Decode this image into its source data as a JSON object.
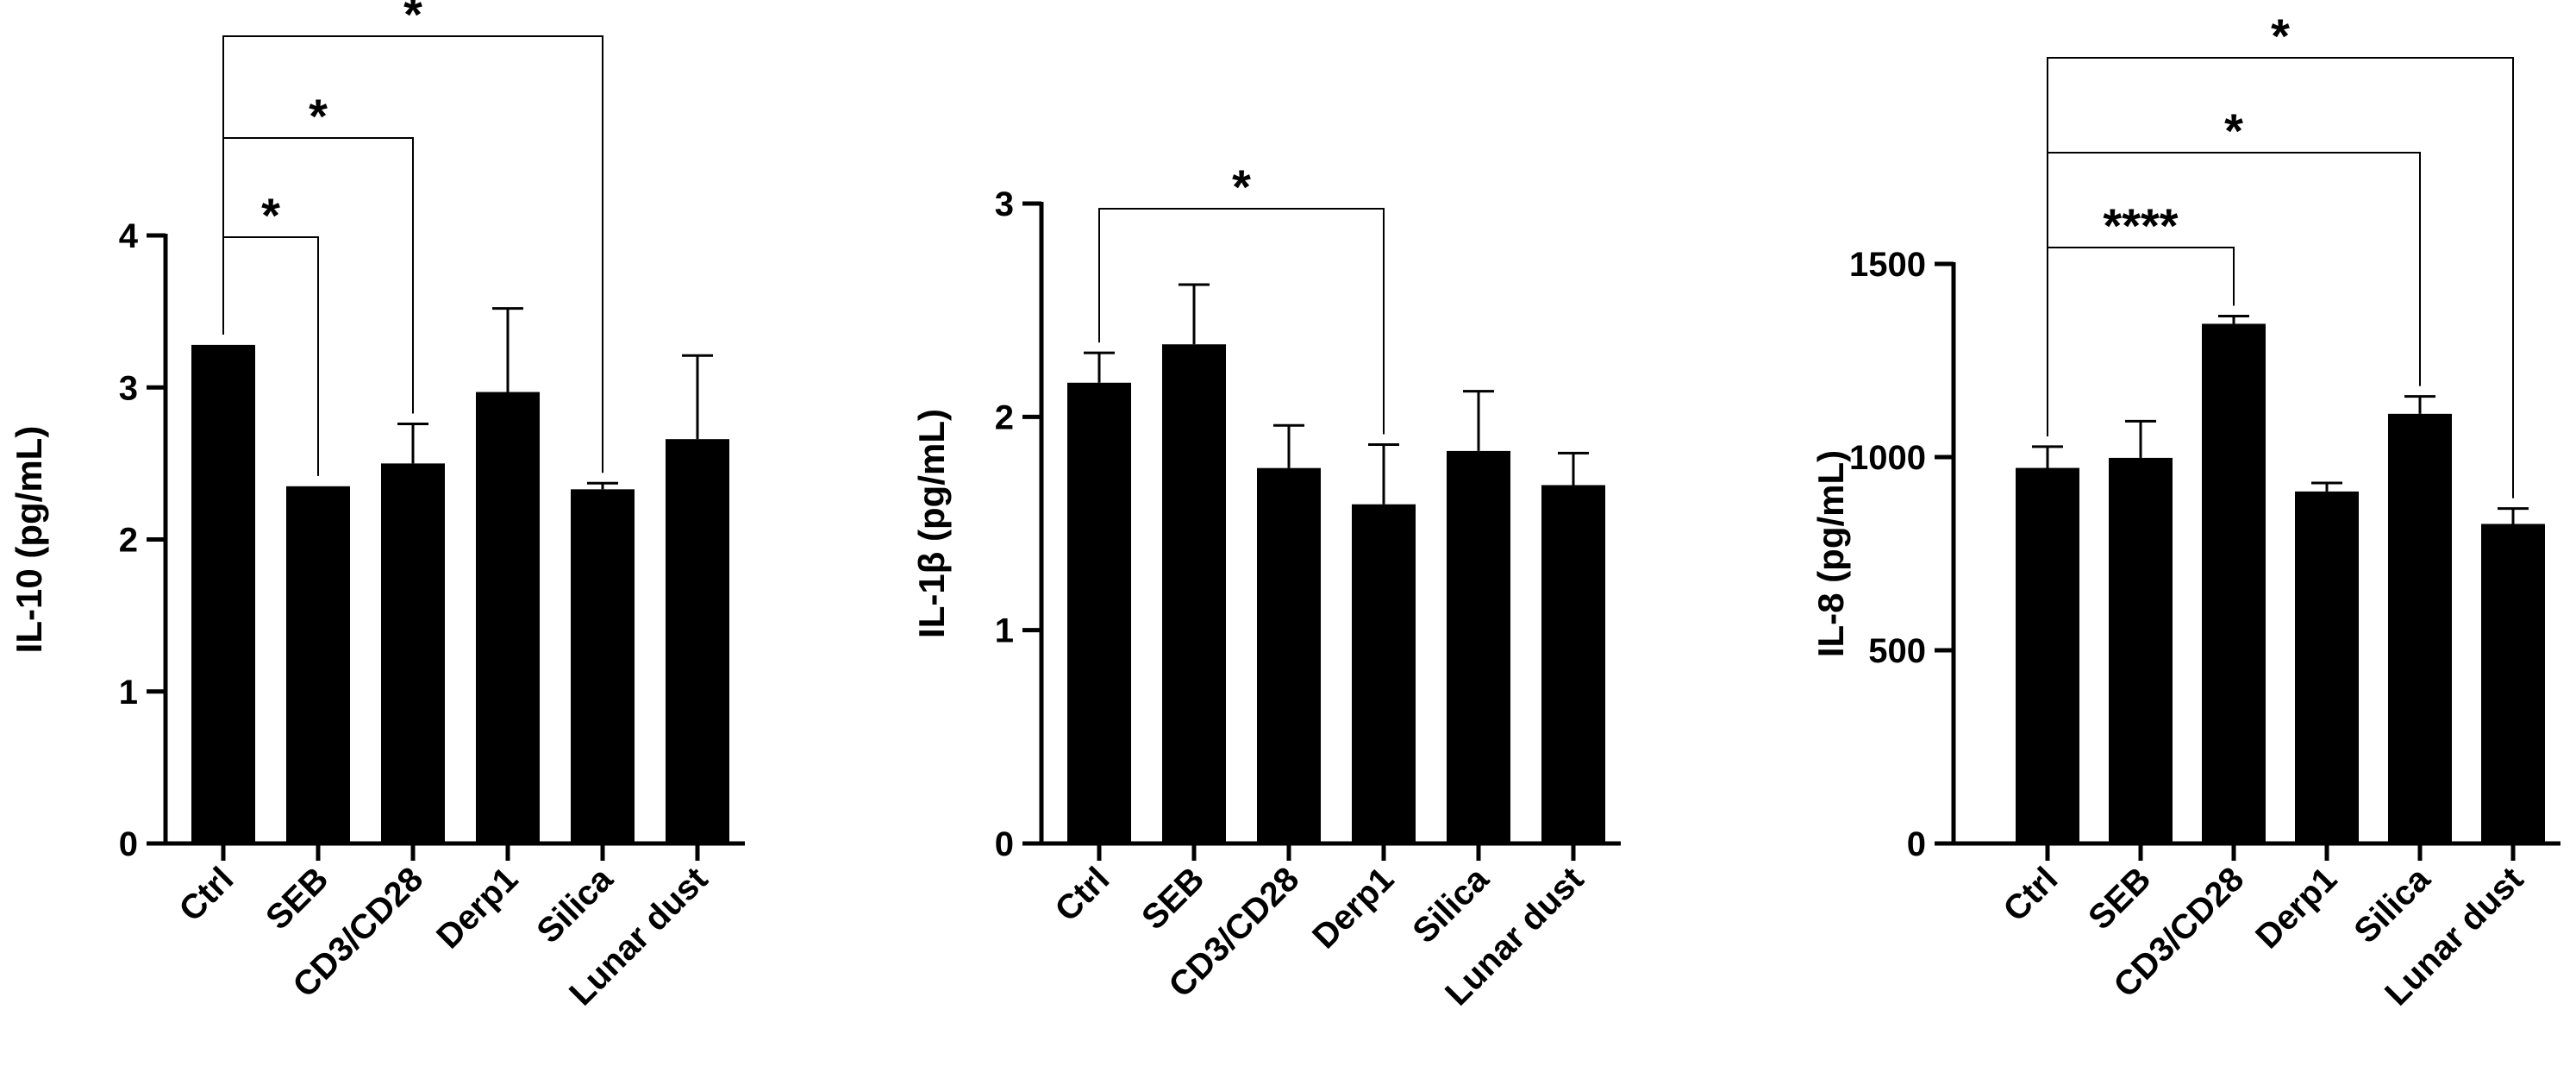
{
  "chart_data": [
    {
      "type": "bar",
      "ylabel": "IL-10 (pg/mL)",
      "categories": [
        "Ctrl",
        "SEB",
        "CD3/CD28",
        "Derp1",
        "Silica",
        "Lunar dust"
      ],
      "values": [
        3.28,
        2.35,
        2.5,
        2.97,
        2.33,
        2.66
      ],
      "errors": [
        0,
        0,
        0.26,
        0.55,
        0.04,
        0.55
      ],
      "ylim": [
        0,
        4
      ],
      "yticks": [
        "0",
        "1",
        "2",
        "3",
        "4"
      ],
      "color": "#000000",
      "significance": [
        {
          "from": 0,
          "to": 1,
          "label": "*"
        },
        {
          "from": 0,
          "to": 2,
          "label": "*"
        },
        {
          "from": 0,
          "to": 4,
          "label": "*"
        }
      ]
    },
    {
      "type": "bar",
      "ylabel": "IL-1β (pg/mL)",
      "categories": [
        "Ctrl",
        "SEB",
        "CD3/CD28",
        "Derp1",
        "Silica",
        "Lunar dust"
      ],
      "values": [
        2.16,
        2.34,
        1.76,
        1.59,
        1.84,
        1.68
      ],
      "errors": [
        0.14,
        0.28,
        0.2,
        0.28,
        0.28,
        0.15
      ],
      "ylim": [
        0,
        3
      ],
      "yticks": [
        "0",
        "1",
        "2",
        "3"
      ],
      "color": "#000000",
      "significance": [
        {
          "from": 0,
          "to": 3,
          "label": "*"
        }
      ]
    },
    {
      "type": "bar",
      "ylabel": "IL-8 (pg/mL)",
      "categories": [
        "Ctrl",
        "SEB",
        "CD3/CD28",
        "Derp1",
        "Silica",
        "Lunar dust"
      ],
      "values": [
        972,
        998,
        1345,
        911,
        1112,
        827
      ],
      "errors": [
        55,
        95,
        20,
        22,
        45,
        40
      ],
      "ylim": [
        0,
        1500
      ],
      "yticks": [
        "0",
        "500",
        "1000",
        "1500"
      ],
      "color": "#000000",
      "significance": [
        {
          "from": 0,
          "to": 2,
          "label": "****"
        },
        {
          "from": 0,
          "to": 4,
          "label": "*"
        },
        {
          "from": 0,
          "to": 5,
          "label": "*"
        }
      ]
    }
  ]
}
